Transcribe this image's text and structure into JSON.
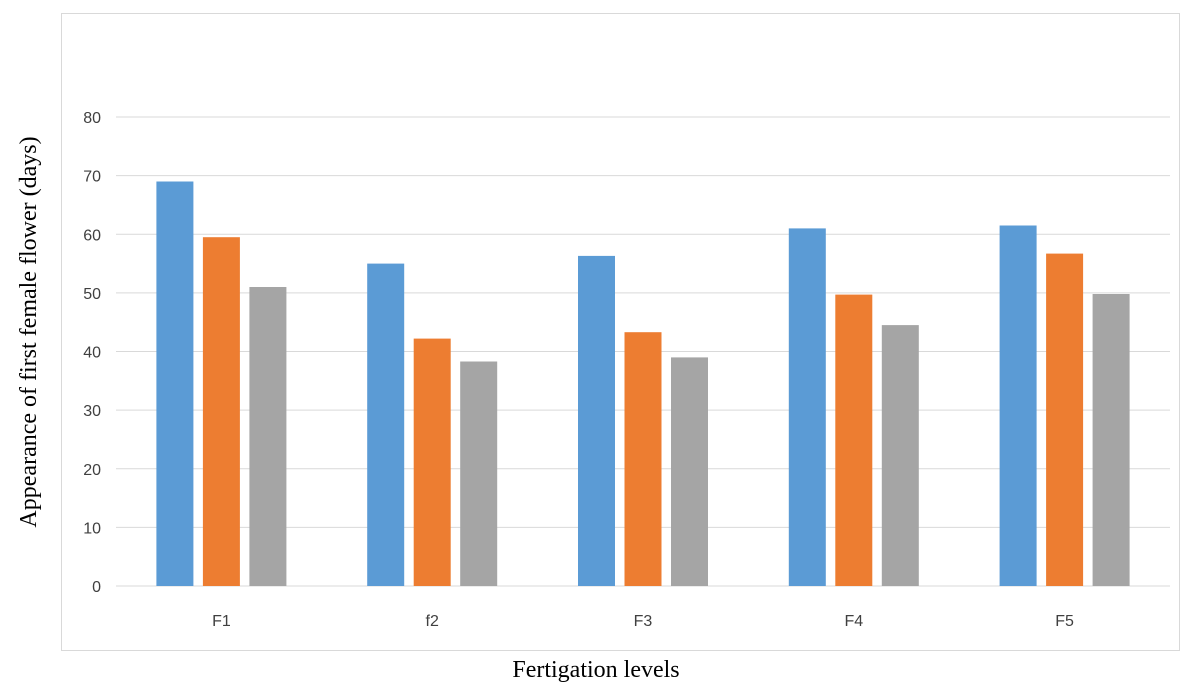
{
  "chart_data": {
    "type": "bar",
    "title": "",
    "xlabel": "Fertigation levels",
    "ylabel": "Appearance of first female flower (days)",
    "ylim": [
      0,
      80
    ],
    "yticks": [
      0,
      10,
      20,
      30,
      40,
      50,
      60,
      70,
      80
    ],
    "grid": true,
    "legend": "none",
    "categories": [
      "F1",
      "f2",
      "F3",
      "F4",
      "F5"
    ],
    "series": [
      {
        "values": [
          69.0,
          55.0,
          56.3,
          61.0,
          61.5
        ],
        "color": "#5B9BD5"
      },
      {
        "values": [
          59.5,
          42.2,
          43.3,
          49.7,
          56.7
        ],
        "color": "#ED7D31"
      },
      {
        "values": [
          51.0,
          38.3,
          39.0,
          44.5,
          49.8
        ],
        "color": "#A5A5A5"
      }
    ],
    "colors": {
      "grid": "#D9D9D9",
      "frame": "#D9D9D9",
      "tick_text": "#404040"
    }
  }
}
